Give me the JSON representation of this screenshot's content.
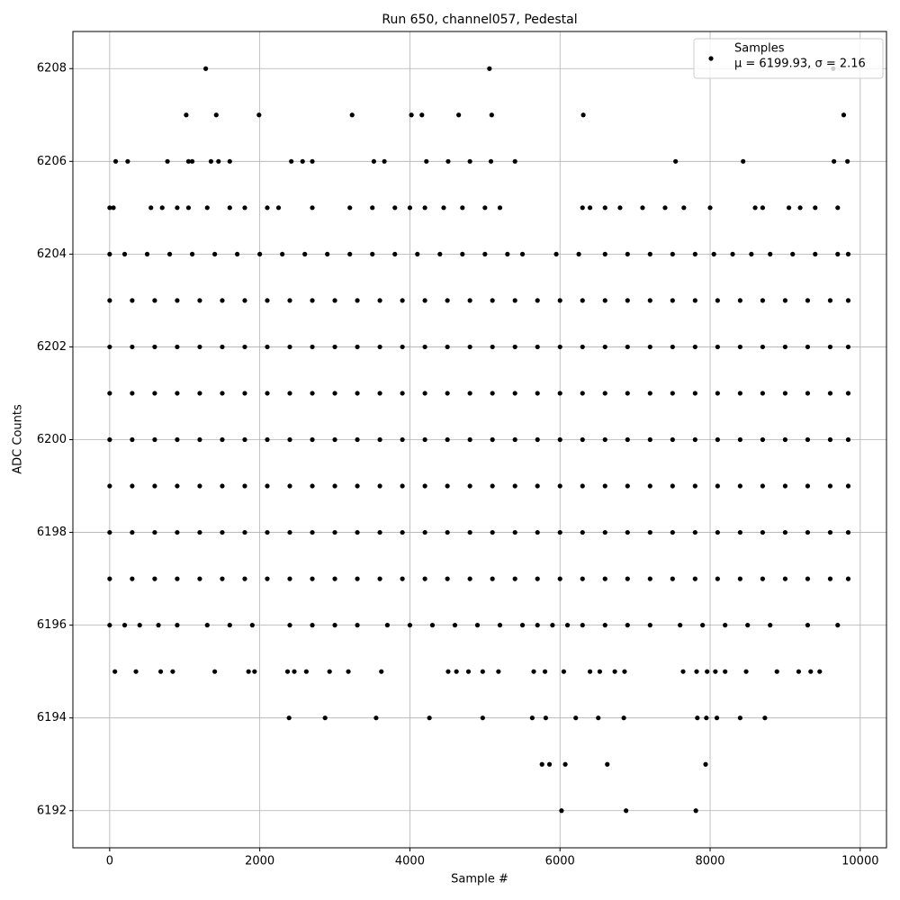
{
  "chart_data": {
    "type": "scatter",
    "title": "Run 650, channel057, Pedestal",
    "x_label": "Sample #",
    "y_label": "ADC Counts",
    "xlim": [
      -490,
      10350
    ],
    "ylim": [
      6191.2,
      6208.8
    ],
    "xticks": [
      0,
      2000,
      4000,
      6000,
      8000,
      10000
    ],
    "yticks": [
      6192,
      6194,
      6196,
      6198,
      6200,
      6202,
      6204,
      6206,
      6208
    ],
    "grid": true,
    "legend_loc": "upper right",
    "legend_note": "μ = 6199.93, σ = 2.16",
    "series": [
      {
        "name": "Samples",
        "color": "#000000",
        "x": [
          0,
          300,
          600,
          900,
          1200,
          1500,
          1800,
          2100,
          2400,
          2700,
          3000,
          3300,
          3600,
          3900,
          4200,
          4500,
          4800,
          5100,
          5400,
          5700,
          6000,
          6300,
          6600,
          6900,
          7200,
          7500,
          7800,
          8100,
          8400,
          8700,
          9000,
          9300,
          9600,
          9840,
          0,
          300,
          600,
          900,
          1200,
          1500,
          1800,
          2100,
          2400,
          2700,
          3000,
          3300,
          3600,
          3900,
          4200,
          4500,
          4800,
          5100,
          5400,
          5700,
          6000,
          6300,
          6600,
          6900,
          7200,
          7500,
          7800,
          8100,
          8400,
          8700,
          9000,
          9300,
          9600,
          9840,
          0,
          300,
          600,
          900,
          1200,
          1500,
          1800,
          2100,
          2400,
          2700,
          3000,
          3300,
          3600,
          3900,
          4200,
          4500,
          4800,
          5100,
          5400,
          5700,
          6000,
          6300,
          6600,
          6900,
          7200,
          7500,
          7800,
          8100,
          8400,
          8700,
          9000,
          9300,
          9600,
          9840,
          0,
          300,
          600,
          900,
          1200,
          1500,
          1800,
          2100,
          2400,
          2700,
          3000,
          3300,
          3600,
          3900,
          4200,
          4500,
          4800,
          5100,
          5400,
          5700,
          6000,
          6300,
          6600,
          6900,
          7200,
          7500,
          7800,
          8100,
          8400,
          8700,
          9000,
          9300,
          9600,
          9840,
          0,
          300,
          600,
          900,
          1200,
          1500,
          1800,
          2100,
          2400,
          2700,
          3000,
          3300,
          3600,
          3900,
          4200,
          4500,
          4800,
          5100,
          5400,
          5700,
          6000,
          6300,
          6600,
          6900,
          7200,
          7500,
          7800,
          8100,
          8400,
          8700,
          9000,
          9300,
          9600,
          9840,
          0,
          300,
          600,
          900,
          1200,
          1500,
          1800,
          2100,
          2400,
          2700,
          3000,
          3300,
          3600,
          3900,
          4200,
          4500,
          4800,
          5100,
          5400,
          5700,
          6000,
          6300,
          6600,
          6900,
          7200,
          7500,
          7800,
          8100,
          8400,
          8700,
          9000,
          9300,
          9600,
          9840,
          0,
          300,
          600,
          900,
          1200,
          1500,
          1800,
          2100,
          2400,
          2700,
          3000,
          3300,
          3600,
          3900,
          4200,
          4500,
          4800,
          5100,
          5400,
          5700,
          6000,
          6300,
          6600,
          6900,
          7200,
          7500,
          7800,
          8100,
          8400,
          8700,
          9000,
          9300,
          9600,
          9840,
          0,
          200,
          400,
          650,
          900,
          1300,
          1600,
          1900,
          2400,
          2700,
          3000,
          3300,
          3700,
          4000,
          4300,
          4600,
          4900,
          5200,
          5500,
          5700,
          5900,
          6100,
          6300,
          6600,
          6900,
          7200,
          7600,
          7900,
          8200,
          8500,
          8800,
          9300,
          9700,
          0,
          200,
          500,
          800,
          1100,
          1400,
          1700,
          2000,
          2300,
          2600,
          2900,
          3200,
          3500,
          3800,
          4100,
          4400,
          4700,
          5000,
          5300,
          5500,
          5950,
          6250,
          6600,
          6900,
          7200,
          7500,
          7800,
          8050,
          8300,
          8550,
          8800,
          9100,
          9400,
          9700,
          9840,
          0,
          50,
          550,
          700,
          900,
          1050,
          1300,
          1600,
          1800,
          2100,
          2250,
          2700,
          3200,
          3500,
          3800,
          4000,
          4200,
          4450,
          4700,
          5000,
          5200,
          6300,
          6400,
          6600,
          6800,
          7100,
          7400,
          7650,
          8000,
          8600,
          8700,
          9050,
          9200,
          9400,
          9700,
          80,
          240,
          770,
          1050,
          1100,
          1350,
          1450,
          1600,
          2420,
          2570,
          2700,
          3520,
          3660,
          4220,
          4510,
          4800,
          5080,
          5400,
          7540,
          8440,
          9650,
          9830,
          1020,
          1420,
          1990,
          3230,
          4020,
          4160,
          4650,
          5090,
          6310,
          9780,
          1280,
          5060,
          9640,
          70,
          350,
          680,
          840,
          1400,
          1850,
          1930,
          2370,
          2460,
          2620,
          2930,
          3180,
          3620,
          4510,
          4620,
          4780,
          4970,
          5180,
          5650,
          5800,
          6050,
          6400,
          6530,
          6730,
          6860,
          7640,
          7820,
          7960,
          8070,
          8200,
          8480,
          8890,
          9180,
          9340,
          9460,
          2390,
          2870,
          3550,
          4260,
          4970,
          5630,
          5810,
          6210,
          6510,
          6850,
          7830,
          7950,
          8090,
          8400,
          8730,
          5760,
          5860,
          6070,
          6630,
          7940,
          6020,
          6880,
          7810
        ],
        "y": [
          6197,
          6197,
          6197,
          6197,
          6197,
          6197,
          6197,
          6197,
          6197,
          6197,
          6197,
          6197,
          6197,
          6197,
          6197,
          6197,
          6197,
          6197,
          6197,
          6197,
          6197,
          6197,
          6197,
          6197,
          6197,
          6197,
          6197,
          6197,
          6197,
          6197,
          6197,
          6197,
          6197,
          6197,
          6198,
          6198,
          6198,
          6198,
          6198,
          6198,
          6198,
          6198,
          6198,
          6198,
          6198,
          6198,
          6198,
          6198,
          6198,
          6198,
          6198,
          6198,
          6198,
          6198,
          6198,
          6198,
          6198,
          6198,
          6198,
          6198,
          6198,
          6198,
          6198,
          6198,
          6198,
          6198,
          6198,
          6198,
          6199,
          6199,
          6199,
          6199,
          6199,
          6199,
          6199,
          6199,
          6199,
          6199,
          6199,
          6199,
          6199,
          6199,
          6199,
          6199,
          6199,
          6199,
          6199,
          6199,
          6199,
          6199,
          6199,
          6199,
          6199,
          6199,
          6199,
          6199,
          6199,
          6199,
          6199,
          6199,
          6199,
          6199,
          6200,
          6200,
          6200,
          6200,
          6200,
          6200,
          6200,
          6200,
          6200,
          6200,
          6200,
          6200,
          6200,
          6200,
          6200,
          6200,
          6200,
          6200,
          6200,
          6200,
          6200,
          6200,
          6200,
          6200,
          6200,
          6200,
          6200,
          6200,
          6200,
          6200,
          6200,
          6200,
          6200,
          6200,
          6201,
          6201,
          6201,
          6201,
          6201,
          6201,
          6201,
          6201,
          6201,
          6201,
          6201,
          6201,
          6201,
          6201,
          6201,
          6201,
          6201,
          6201,
          6201,
          6201,
          6201,
          6201,
          6201,
          6201,
          6201,
          6201,
          6201,
          6201,
          6201,
          6201,
          6201,
          6201,
          6201,
          6201,
          6202,
          6202,
          6202,
          6202,
          6202,
          6202,
          6202,
          6202,
          6202,
          6202,
          6202,
          6202,
          6202,
          6202,
          6202,
          6202,
          6202,
          6202,
          6202,
          6202,
          6202,
          6202,
          6202,
          6202,
          6202,
          6202,
          6202,
          6202,
          6202,
          6202,
          6202,
          6202,
          6202,
          6202,
          6203,
          6203,
          6203,
          6203,
          6203,
          6203,
          6203,
          6203,
          6203,
          6203,
          6203,
          6203,
          6203,
          6203,
          6203,
          6203,
          6203,
          6203,
          6203,
          6203,
          6203,
          6203,
          6203,
          6203,
          6203,
          6203,
          6203,
          6203,
          6203,
          6203,
          6203,
          6203,
          6203,
          6203,
          6196,
          6196,
          6196,
          6196,
          6196,
          6196,
          6196,
          6196,
          6196,
          6196,
          6196,
          6196,
          6196,
          6196,
          6196,
          6196,
          6196,
          6196,
          6196,
          6196,
          6196,
          6196,
          6196,
          6196,
          6196,
          6196,
          6196,
          6196,
          6196,
          6196,
          6196,
          6196,
          6196,
          6204,
          6204,
          6204,
          6204,
          6204,
          6204,
          6204,
          6204,
          6204,
          6204,
          6204,
          6204,
          6204,
          6204,
          6204,
          6204,
          6204,
          6204,
          6204,
          6204,
          6204,
          6204,
          6204,
          6204,
          6204,
          6204,
          6204,
          6204,
          6204,
          6204,
          6204,
          6204,
          6204,
          6204,
          6204,
          6205,
          6205,
          6205,
          6205,
          6205,
          6205,
          6205,
          6205,
          6205,
          6205,
          6205,
          6205,
          6205,
          6205,
          6205,
          6205,
          6205,
          6205,
          6205,
          6205,
          6205,
          6205,
          6205,
          6205,
          6205,
          6205,
          6205,
          6205,
          6205,
          6205,
          6205,
          6205,
          6205,
          6205,
          6205,
          6206,
          6206,
          6206,
          6206,
          6206,
          6206,
          6206,
          6206,
          6206,
          6206,
          6206,
          6206,
          6206,
          6206,
          6206,
          6206,
          6206,
          6206,
          6206,
          6206,
          6206,
          6206,
          6207,
          6207,
          6207,
          6207,
          6207,
          6207,
          6207,
          6207,
          6207,
          6207,
          6208,
          6208,
          6208,
          6195,
          6195,
          6195,
          6195,
          6195,
          6195,
          6195,
          6195,
          6195,
          6195,
          6195,
          6195,
          6195,
          6195,
          6195,
          6195,
          6195,
          6195,
          6195,
          6195,
          6195,
          6195,
          6195,
          6195,
          6195,
          6195,
          6195,
          6195,
          6195,
          6195,
          6195,
          6195,
          6195,
          6195,
          6195,
          6194,
          6194,
          6194,
          6194,
          6194,
          6194,
          6194,
          6194,
          6194,
          6194,
          6194,
          6194,
          6194,
          6194,
          6194,
          6193,
          6193,
          6193,
          6193,
          6193,
          6192,
          6192,
          6192
        ]
      }
    ]
  }
}
